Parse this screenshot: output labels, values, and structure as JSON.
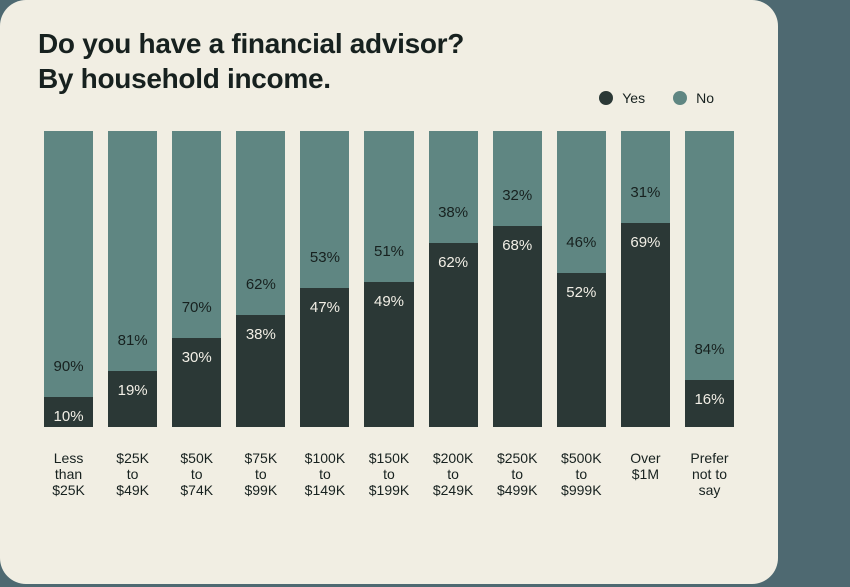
{
  "colors": {
    "background": "#4E6971",
    "card": "#F1EEE3",
    "yes": "#2B3836",
    "no": "#5F8682",
    "text": "#17211F",
    "label_on_yes": "#F2EFE6"
  },
  "title": {
    "line1": "Do you have a financial advisor?",
    "line2": "By household income."
  },
  "legend": [
    {
      "label": "Yes",
      "color": "#2B3836"
    },
    {
      "label": "No",
      "color": "#5F8682"
    }
  ],
  "chart_data": {
    "type": "bar",
    "stacked": true,
    "orientation": "vertical",
    "title": "Do you have a financial advisor? By household income.",
    "unit": "%",
    "ylim": [
      0,
      100
    ],
    "legend_position": "top-right",
    "categories": [
      "Less than $25K",
      "$25K to $49K",
      "$50K to $74K",
      "$75K to $99K",
      "$100K to $149K",
      "$150K to $199K",
      "$200K to $249K",
      "$250K to $499K",
      "$500K to $999K",
      "Over $1M",
      "Prefer not to say"
    ],
    "tick_labels": [
      [
        "Less",
        "than",
        "$25K"
      ],
      [
        "$25K",
        "to",
        "$49K"
      ],
      [
        "$50K",
        "to",
        "$74K"
      ],
      [
        "$75K",
        "to",
        "$99K"
      ],
      [
        "$100K",
        "to",
        "$149K"
      ],
      [
        "$150K",
        "to",
        "$199K"
      ],
      [
        "$200K",
        "to",
        "$249K"
      ],
      [
        "$250K",
        "to",
        "$499K"
      ],
      [
        "$500K",
        "to",
        "$999K"
      ],
      [
        "Over",
        "$1M"
      ],
      [
        "Prefer",
        "not to",
        "say"
      ]
    ],
    "series": [
      {
        "name": "Yes",
        "color": "#2B3836",
        "values": [
          10,
          19,
          30,
          38,
          47,
          49,
          62,
          68,
          52,
          69,
          16
        ]
      },
      {
        "name": "No",
        "color": "#5F8682",
        "values": [
          90,
          81,
          70,
          62,
          53,
          51,
          38,
          32,
          46,
          31,
          84
        ]
      }
    ]
  }
}
